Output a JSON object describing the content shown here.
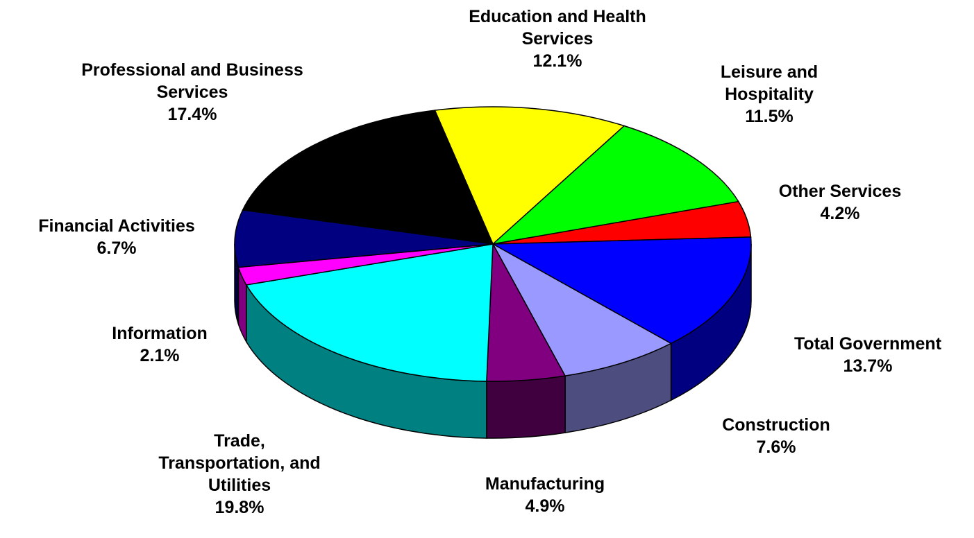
{
  "chart_data": {
    "type": "pie",
    "categories": [
      "Education and Health Services",
      "Leisure and Hospitality",
      "Other Services",
      "Total Government",
      "Construction",
      "Manufacturing",
      "Trade, Transportation, and Utilities",
      "Information",
      "Financial Activities",
      "Professional and Business Services"
    ],
    "values": [
      12.1,
      11.5,
      4.2,
      13.7,
      7.6,
      4.9,
      19.8,
      2.1,
      6.7,
      17.4
    ],
    "value_labels": [
      "12.1%",
      "11.5%",
      "4.2%",
      "13.7%",
      "7.6%",
      "4.9%",
      "19.8%",
      "2.1%",
      "6.7%",
      "17.4%"
    ],
    "colors": [
      "#ffff00",
      "#00ff00",
      "#ff0000",
      "#0000ff",
      "#9999ff",
      "#800080",
      "#00ffff",
      "#ff00ff",
      "#000080",
      "#000000"
    ],
    "three_d": true
  }
}
